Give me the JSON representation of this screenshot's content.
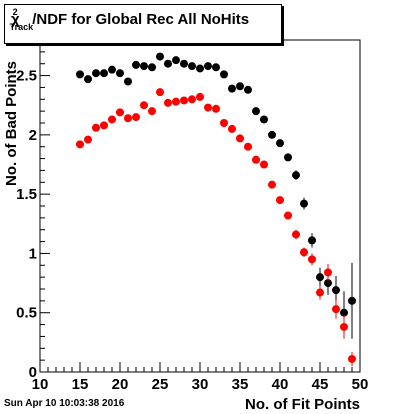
{
  "title": {
    "symbol": "χ",
    "superscript": "2",
    "subscript": "Track",
    "rest": "/NDF for Global Rec All NoHits"
  },
  "footer_timestamp": "Sun Apr 10 10:03:38 2016",
  "chart_data": {
    "type": "scatter",
    "title": "χ2 Track/NDF for Global Rec All NoHits",
    "xlabel": "No. of Fit Points",
    "ylabel": "No. of Bad Points",
    "xlim": [
      10,
      50
    ],
    "ylim": [
      0,
      2.8
    ],
    "xticks": [
      "10",
      "15",
      "20",
      "25",
      "30",
      "35",
      "40",
      "45",
      "50"
    ],
    "yticks": [
      "0",
      "0.5",
      "1",
      "1.5",
      "2",
      "2.5"
    ],
    "ytick_values": [
      0,
      0.5,
      1,
      1.5,
      2,
      2.5
    ],
    "grid": false,
    "series": [
      {
        "color": "#000000",
        "x": [
          15,
          16,
          17,
          18,
          19,
          20,
          21,
          22,
          23,
          24,
          25,
          26,
          27,
          28,
          29,
          30,
          31,
          32,
          33,
          34,
          35,
          36,
          37,
          38,
          39,
          40,
          41,
          42,
          43,
          44,
          45,
          46,
          47,
          48,
          49
        ],
        "y": [
          2.51,
          2.47,
          2.52,
          2.52,
          2.55,
          2.52,
          2.45,
          2.59,
          2.58,
          2.57,
          2.66,
          2.6,
          2.63,
          2.6,
          2.58,
          2.56,
          2.58,
          2.57,
          2.51,
          2.39,
          2.41,
          2.38,
          2.2,
          2.13,
          2.0,
          1.93,
          1.81,
          1.66,
          1.42,
          1.11,
          0.8,
          0.75,
          0.69,
          0.5,
          0.6
        ],
        "err": [
          0.02,
          0.02,
          0.02,
          0.02,
          0.02,
          0.02,
          0.02,
          0.02,
          0.02,
          0.02,
          0.02,
          0.02,
          0.02,
          0.02,
          0.02,
          0.02,
          0.02,
          0.02,
          0.02,
          0.02,
          0.02,
          0.02,
          0.02,
          0.02,
          0.03,
          0.03,
          0.03,
          0.04,
          0.05,
          0.06,
          0.08,
          0.1,
          0.12,
          0.18,
          0.32
        ]
      },
      {
        "color": "#ff0000",
        "x": [
          15,
          16,
          17,
          18,
          19,
          20,
          21,
          22,
          23,
          24,
          25,
          26,
          27,
          28,
          29,
          30,
          31,
          32,
          33,
          34,
          35,
          36,
          37,
          38,
          39,
          40,
          41,
          42,
          43,
          44,
          45,
          46,
          47,
          48,
          49
        ],
        "y": [
          1.92,
          1.96,
          2.06,
          2.08,
          2.13,
          2.19,
          2.14,
          2.15,
          2.25,
          2.2,
          2.36,
          2.27,
          2.28,
          2.29,
          2.3,
          2.32,
          2.23,
          2.22,
          2.1,
          2.05,
          1.97,
          1.9,
          1.79,
          1.75,
          1.58,
          1.45,
          1.32,
          1.16,
          1.01,
          0.95,
          0.67,
          0.84,
          0.53,
          0.38,
          0.11
        ],
        "err": [
          0.02,
          0.02,
          0.02,
          0.02,
          0.02,
          0.02,
          0.02,
          0.02,
          0.02,
          0.02,
          0.02,
          0.02,
          0.02,
          0.02,
          0.02,
          0.02,
          0.02,
          0.02,
          0.02,
          0.02,
          0.02,
          0.02,
          0.02,
          0.02,
          0.03,
          0.03,
          0.03,
          0.04,
          0.04,
          0.05,
          0.06,
          0.07,
          0.08,
          0.1,
          0.06
        ]
      }
    ]
  }
}
